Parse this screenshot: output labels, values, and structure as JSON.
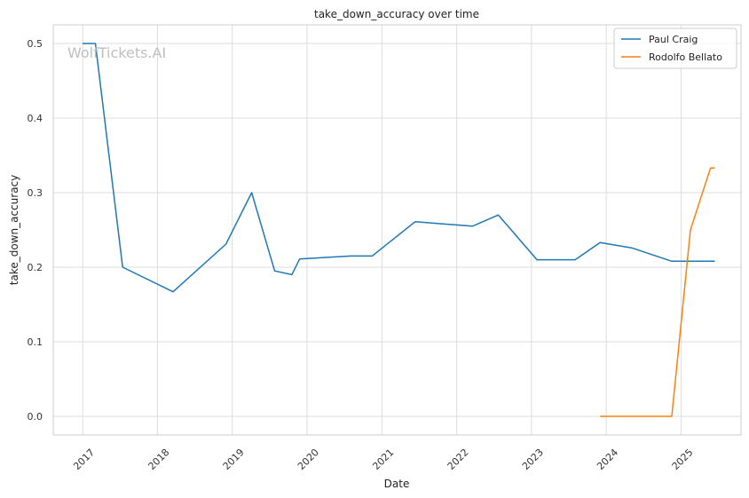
{
  "chart_data": {
    "type": "line",
    "title": "take_down_accuracy over time",
    "xlabel": "Date",
    "ylabel": "take_down_accuracy",
    "watermark": "WolfTickets.AI",
    "x_ticks": [
      "2017",
      "2018",
      "2019",
      "2020",
      "2021",
      "2022",
      "2023",
      "2024",
      "2025"
    ],
    "y_ticks": [
      "0.0",
      "0.1",
      "0.2",
      "0.3",
      "0.4",
      "0.5"
    ],
    "xlim": [
      "2016-08-10",
      "2025-10-20"
    ],
    "ylim": [
      -0.025,
      0.525
    ],
    "grid": true,
    "legend_position": "top-right",
    "series": [
      {
        "name": "Paul Craig",
        "color": "#1f77b4",
        "points": [
          [
            "2016-12-31",
            0.5
          ],
          [
            "2017-03-04",
            0.5
          ],
          [
            "2017-07-15",
            0.2
          ],
          [
            "2018-03-18",
            0.167
          ],
          [
            "2018-12-01",
            0.231
          ],
          [
            "2019-04-06",
            0.3
          ],
          [
            "2019-07-27",
            0.195
          ],
          [
            "2019-10-19",
            0.19
          ],
          [
            "2019-11-26",
            0.211
          ],
          [
            "2020-08-01",
            0.215
          ],
          [
            "2020-11-14",
            0.215
          ],
          [
            "2021-06-12",
            0.261
          ],
          [
            "2022-03-19",
            0.255
          ],
          [
            "2022-07-23",
            0.27
          ],
          [
            "2023-01-28",
            0.21
          ],
          [
            "2023-08-02",
            0.21
          ],
          [
            "2023-12-02",
            0.233
          ],
          [
            "2024-05-04",
            0.226
          ],
          [
            "2024-11-16",
            0.208
          ],
          [
            "2025-06-14",
            0.208
          ]
        ]
      },
      {
        "name": "Rodolfo Bellato",
        "color": "#ff7f0e",
        "points": [
          [
            "2023-12-02",
            0.0
          ],
          [
            "2024-11-16",
            0.0
          ],
          [
            "2025-02-15",
            0.25
          ],
          [
            "2025-05-24",
            0.333
          ],
          [
            "2025-06-14",
            0.333
          ]
        ]
      }
    ]
  }
}
